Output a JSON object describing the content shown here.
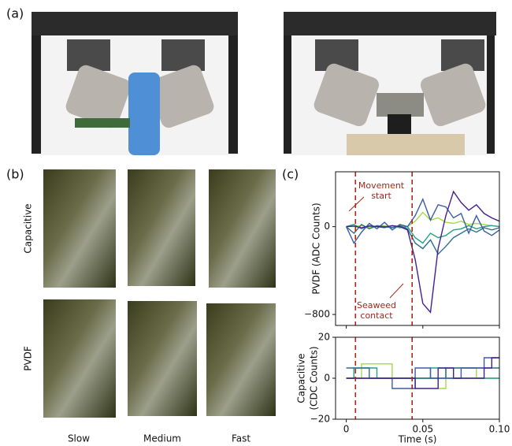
{
  "panels": [
    "(a)",
    "(b)",
    "(c)"
  ],
  "seaweed": {
    "rows": [
      "Capacitive",
      "PVDF"
    ],
    "columns": [
      "Slow",
      "Medium",
      "Fast"
    ]
  },
  "chart_data": [
    {
      "type": "line",
      "ylabel": "PVDF (ADC Counts)",
      "xlim": [
        -0.007,
        0.1
      ],
      "ylim": [
        -900,
        500
      ],
      "yticks": [
        0,
        {
          "value": -800,
          "label": "−800"
        }
      ],
      "vlines": [
        0.006,
        0.043
      ],
      "vline_color": "#a52a1a",
      "annotations": [
        {
          "lines": [
            "Movement",
            "start"
          ]
        },
        {
          "lines": [
            "Seaweed",
            "contact"
          ]
        }
      ],
      "x": [
        0,
        0.005,
        0.01,
        0.015,
        0.02,
        0.025,
        0.03,
        0.035,
        0.04,
        0.045,
        0.05,
        0.055,
        0.06,
        0.065,
        0.07,
        0.075,
        0.08,
        0.085,
        0.09,
        0.095,
        0.1
      ],
      "series": [
        {
          "color": "#a5da4b",
          "values": [
            0,
            0,
            10,
            -10,
            0,
            10,
            -5,
            5,
            0,
            50,
            130,
            60,
            80,
            40,
            30,
            50,
            20,
            30,
            20,
            10,
            0
          ]
        },
        {
          "color": "#27a083",
          "values": [
            0,
            20,
            -20,
            10,
            0,
            -10,
            10,
            -10,
            0,
            -100,
            -150,
            -60,
            -100,
            -80,
            -30,
            -20,
            10,
            -20,
            0,
            10,
            0
          ]
        },
        {
          "color": "#2e6f8e",
          "values": [
            0,
            -60,
            20,
            -20,
            10,
            0,
            -10,
            10,
            -20,
            -150,
            -200,
            -120,
            -250,
            -180,
            -100,
            -60,
            -20,
            -50,
            -10,
            -30,
            -10
          ]
        },
        {
          "color": "#3d5ba9",
          "values": [
            0,
            -150,
            -50,
            30,
            -20,
            40,
            -30,
            20,
            0,
            100,
            250,
            60,
            200,
            180,
            80,
            120,
            -60,
            100,
            -40,
            -80,
            -30
          ]
        },
        {
          "color": "#43218f",
          "values": [
            0,
            5,
            -10,
            5,
            0,
            -5,
            10,
            0,
            -30,
            -300,
            -700,
            -780,
            -200,
            100,
            320,
            220,
            150,
            200,
            120,
            80,
            50
          ]
        }
      ]
    },
    {
      "type": "step",
      "ylabel": [
        "Capacitive",
        "(CDC Counts)"
      ],
      "xlabel": "Time (s)",
      "xlim": [
        -0.007,
        0.1
      ],
      "ylim": [
        -20,
        20
      ],
      "yticks": [
        20,
        0,
        {
          "value": -20,
          "label": "−20"
        }
      ],
      "xticks": [
        0,
        0.05,
        {
          "value": 0.1,
          "label": "0.10"
        }
      ],
      "vlines": [
        0.006,
        0.043
      ],
      "vline_color": "#a52a1a",
      "x": [
        0,
        0.005,
        0.01,
        0.015,
        0.02,
        0.025,
        0.03,
        0.035,
        0.04,
        0.045,
        0.05,
        0.055,
        0.06,
        0.065,
        0.07,
        0.075,
        0.08,
        0.085,
        0.09,
        0.095,
        0.1
      ],
      "series": [
        {
          "color": "#a5da4b",
          "values": [
            0,
            0,
            7,
            7,
            7,
            7,
            0,
            0,
            0,
            0,
            0,
            0,
            -5,
            0,
            5,
            5,
            5,
            0,
            0,
            0,
            0
          ]
        },
        {
          "color": "#27a083",
          "values": [
            0,
            5,
            5,
            5,
            0,
            0,
            0,
            0,
            0,
            0,
            0,
            5,
            5,
            0,
            0,
            0,
            0,
            0,
            0,
            0,
            0
          ]
        },
        {
          "color": "#2e6f8e",
          "values": [
            5,
            5,
            5,
            0,
            0,
            0,
            0,
            0,
            0,
            0,
            0,
            0,
            0,
            5,
            5,
            5,
            5,
            5,
            5,
            5,
            5
          ]
        },
        {
          "color": "#3d5ba9",
          "values": [
            0,
            0,
            0,
            0,
            0,
            0,
            -5,
            -5,
            -5,
            5,
            5,
            0,
            0,
            0,
            0,
            5,
            5,
            5,
            10,
            10,
            10
          ]
        },
        {
          "color": "#43218f",
          "values": [
            0,
            0,
            0,
            0,
            0,
            0,
            0,
            0,
            0,
            -5,
            -5,
            -5,
            5,
            5,
            0,
            0,
            0,
            0,
            5,
            10,
            10
          ]
        }
      ]
    }
  ]
}
